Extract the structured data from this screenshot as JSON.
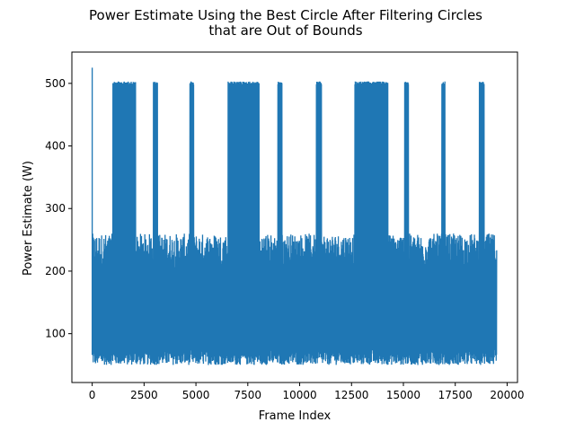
{
  "chart_data": {
    "type": "line",
    "title": "Power Estimate Using the Best Circle After Filtering Circles\nthat are Out of Bounds",
    "title_lines": [
      "Power Estimate Using the Best Circle After Filtering Circles",
      "that are Out of Bounds"
    ],
    "xlabel": "Frame Index",
    "ylabel": "Power Estimate (W)",
    "xlim": [
      -980,
      20500
    ],
    "ylim": [
      22,
      550
    ],
    "xticks": [
      0,
      2500,
      5000,
      7500,
      10000,
      12500,
      15000,
      17500,
      20000
    ],
    "xtick_labels": [
      "0",
      "2500",
      "5000",
      "7500",
      "10000",
      "12500",
      "15000",
      "17500",
      "20000"
    ],
    "yticks": [
      100,
      200,
      300,
      400,
      500
    ],
    "ytick_labels": [
      "100",
      "200",
      "300",
      "400",
      "500"
    ],
    "grid": false,
    "legend": "none",
    "color": "#1f77b4",
    "x_max": 19500,
    "initial_spike": {
      "x": 0,
      "y": 525
    },
    "normal_band": {
      "low_min": 50,
      "low_max": 75,
      "high_min": 205,
      "high_max": 260
    },
    "saturation_level": 503,
    "high_segments": [
      [
        1000,
        2100
      ],
      [
        2950,
        3150
      ],
      [
        4700,
        4900
      ],
      [
        6550,
        8050
      ],
      [
        8950,
        9150
      ],
      [
        10800,
        11050
      ],
      [
        12650,
        14250
      ],
      [
        15050,
        15250
      ],
      [
        16850,
        17000
      ],
      [
        18650,
        18900
      ]
    ]
  }
}
